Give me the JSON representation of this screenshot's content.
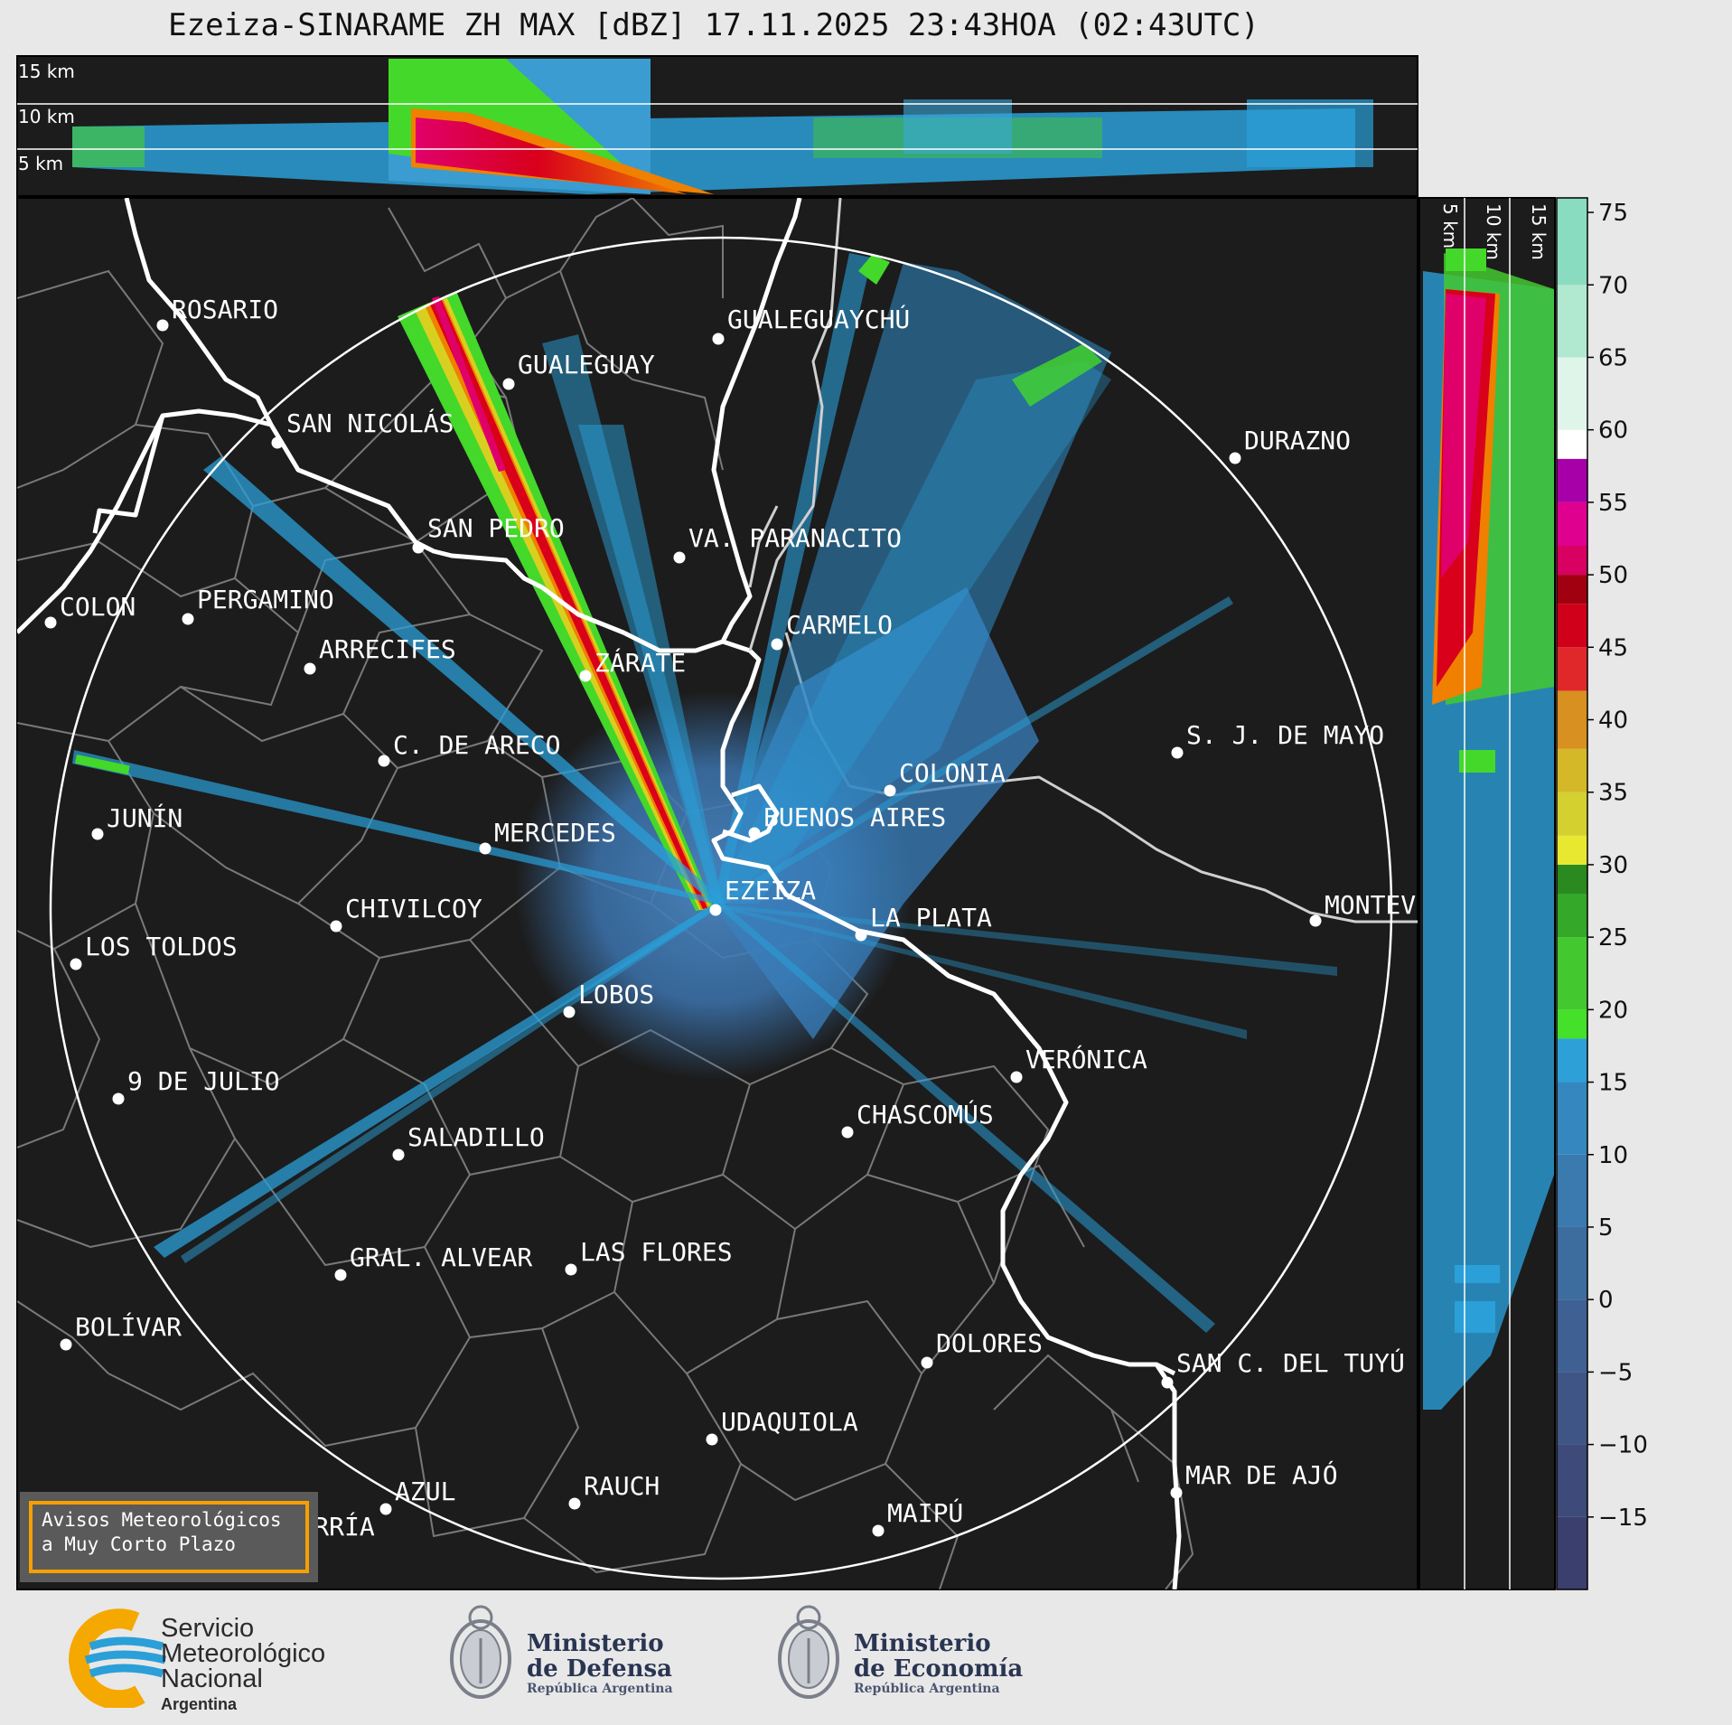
{
  "title": "Ezeiza-SINARAME ZH MAX [dBZ] 17.11.2025 23:43HOA (02:43UTC)",
  "height_labels_top": [
    "15 km",
    "10 km",
    "5 km"
  ],
  "height_labels_right": [
    "5 km",
    "10 km",
    "15 km"
  ],
  "cities": [
    {
      "name": "ROSARIO"
    },
    {
      "name": "GUALEGUAYCHÚ"
    },
    {
      "name": "GUALEGUAY"
    },
    {
      "name": "SAN NICOLÁS"
    },
    {
      "name": "DURAZNO"
    },
    {
      "name": "SAN PEDRO"
    },
    {
      "name": "VA. PARANACITO"
    },
    {
      "name": "COLON"
    },
    {
      "name": "PERGAMINO"
    },
    {
      "name": "CARMELO"
    },
    {
      "name": "ARRECIFES"
    },
    {
      "name": "ZÁRATE"
    },
    {
      "name": "S. J. DE MAYO"
    },
    {
      "name": "C. DE ARECO"
    },
    {
      "name": "COLONIA"
    },
    {
      "name": "JUNÍN"
    },
    {
      "name": "BUENOS AIRES"
    },
    {
      "name": "MERCEDES"
    },
    {
      "name": "MONTEVIDEO"
    },
    {
      "name": "EZEIZA"
    },
    {
      "name": "CHIVILCOY"
    },
    {
      "name": "LA PLATA"
    },
    {
      "name": "LOS TOLDOS"
    },
    {
      "name": "LOBOS"
    },
    {
      "name": "VERÓNICA"
    },
    {
      "name": "9 DE JULIO"
    },
    {
      "name": "CHASCOMÚS"
    },
    {
      "name": "SALADILLO"
    },
    {
      "name": "GRAL. ALVEAR"
    },
    {
      "name": "LAS FLORES"
    },
    {
      "name": "BOLÍVAR"
    },
    {
      "name": "DOLORES"
    },
    {
      "name": "SAN C. DEL TUYÚ"
    },
    {
      "name": "UDAQUIOLA"
    },
    {
      "name": "MAR DE AJÓ"
    },
    {
      "name": "AZUL"
    },
    {
      "name": "RAUCH"
    },
    {
      "name": "MAIPÚ"
    },
    {
      "name": "OLAVARRÍA"
    }
  ],
  "colorbar": {
    "unit": "dBZ",
    "ticks": [
      "75",
      "70",
      "65",
      "60",
      "55",
      "50",
      "45",
      "40",
      "35",
      "30",
      "25",
      "20",
      "15",
      "10",
      "5",
      "0",
      "−5",
      "−10",
      "−15"
    ],
    "min": -20,
    "max": 76
  },
  "aviso": {
    "line1": "Avisos Meteorológicos",
    "line2": "a Muy Corto Plazo"
  },
  "footer": {
    "smn_line1": "Servicio",
    "smn_line2": "Meteorológico",
    "smn_line3": "Nacional",
    "smn_line4": "Argentina",
    "defensa_line1": "Ministerio",
    "defensa_line2": "de Defensa",
    "defensa_line3": "República Argentina",
    "economia_line1": "Ministerio",
    "economia_line2": "de Economía",
    "economia_line3": "República Argentina"
  },
  "colors": {
    "background": "#1c1c1c",
    "page": "#e8e8e8",
    "brand_blue": "#2a9fd8",
    "brand_orange": "#f5a000"
  }
}
